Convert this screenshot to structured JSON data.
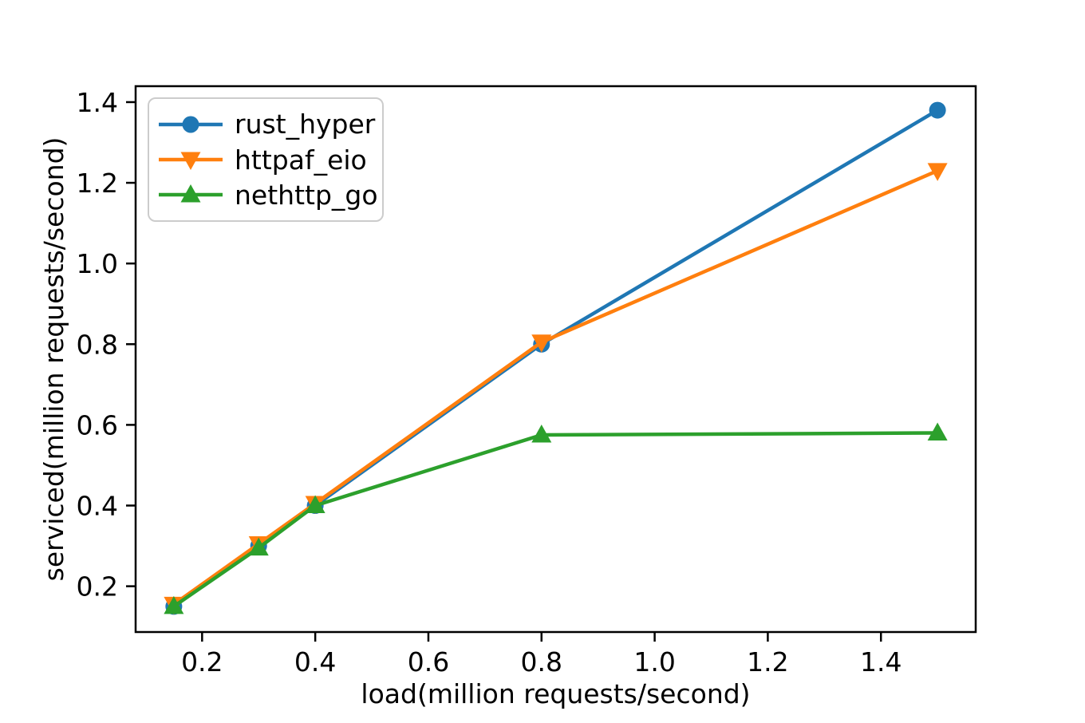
{
  "figure": {
    "background": "#ffffff"
  },
  "chart_data": {
    "type": "line",
    "title": "",
    "xlabel": "load(million requests/second)",
    "ylabel": "serviced(million requests/second)",
    "x": [
      0.15,
      0.3,
      0.4,
      0.8,
      1.5
    ],
    "series": [
      {
        "name": "rust_hyper",
        "color": "#1f77b4",
        "marker": "circle",
        "values": [
          0.15,
          0.3,
          0.4,
          0.8,
          1.38
        ]
      },
      {
        "name": "httpaf_eio",
        "color": "#ff7f0e",
        "marker": "triangle-down",
        "values": [
          0.155,
          0.305,
          0.405,
          0.805,
          1.23
        ]
      },
      {
        "name": "nethttp_go",
        "color": "#2ca02c",
        "marker": "triangle-up",
        "values": [
          0.15,
          0.295,
          0.4,
          0.575,
          0.58
        ]
      }
    ],
    "xtick_labels": [
      "0.2",
      "0.4",
      "0.6",
      "0.8",
      "1.0",
      "1.2",
      "1.4"
    ],
    "ytick_labels": [
      "0.2",
      "0.4",
      "0.6",
      "0.8",
      "1.0",
      "1.2",
      "1.4"
    ],
    "xtick_values": [
      0.2,
      0.4,
      0.6,
      0.8,
      1.0,
      1.2,
      1.4
    ],
    "ytick_values": [
      0.2,
      0.4,
      0.6,
      0.8,
      1.0,
      1.2,
      1.4
    ],
    "xlim": [
      0.0825,
      1.5675
    ],
    "ylim": [
      0.0865,
      1.4395
    ],
    "grid": false,
    "legend": {
      "position": "upper-left",
      "entries": [
        "rust_hyper",
        "httpaf_eio",
        "nethttp_go"
      ]
    },
    "axis_color": "#000000",
    "text_color": "#000000"
  }
}
